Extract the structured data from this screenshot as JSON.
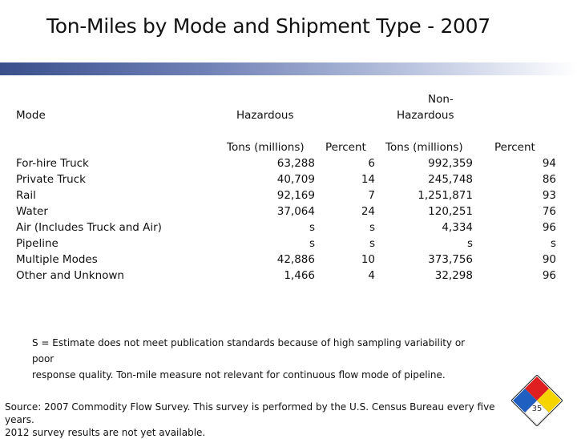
{
  "title": "Ton-Miles by Mode and Shipment Type - 2007",
  "headers": {
    "mode": "Mode",
    "hazardous": "Hazardous",
    "non_hazardous_line1": "Non-",
    "non_hazardous_line2": "Hazardous",
    "tons_haz": "Tons (millions)",
    "pct_haz": "Percent",
    "tons_non": "Tons (millions)",
    "pct_non": "Percent"
  },
  "rows": [
    {
      "mode": "For-hire Truck",
      "tons_haz": "63,288",
      "pct_haz": "6",
      "tons_non": "992,359",
      "pct_non": "94"
    },
    {
      "mode": "Private Truck",
      "tons_haz": "40,709",
      "pct_haz": "14",
      "tons_non": "245,748",
      "pct_non": "86"
    },
    {
      "mode": "Rail",
      "tons_haz": "92,169",
      "pct_haz": "7",
      "tons_non": "1,251,871",
      "pct_non": "93"
    },
    {
      "mode": "Water",
      "tons_haz": "37,064",
      "pct_haz": "24",
      "tons_non": "120,251",
      "pct_non": "76"
    },
    {
      "mode": "Air (Includes Truck and Air)",
      "tons_haz": "s",
      "pct_haz": "s",
      "tons_non": "4,334",
      "pct_non": "96"
    },
    {
      "mode": "Pipeline",
      "tons_haz": "s",
      "pct_haz": "s",
      "tons_non": "s",
      "pct_non": "s"
    },
    {
      "mode": "Multiple Modes",
      "tons_haz": "42,886",
      "pct_haz": "10",
      "tons_non": "373,756",
      "pct_non": "90"
    },
    {
      "mode": "Other and Unknown",
      "tons_haz": "1,466",
      "pct_haz": "4",
      "tons_non": "32,298",
      "pct_non": "96"
    }
  ],
  "note_line1": "S = Estimate does not meet publication standards because of high sampling variability or poor",
  "note_line2": "response quality. Ton-mile measure not relevant for continuous flow mode of pipeline.",
  "source_line1": "Source: 2007 Commodity Flow Survey. This survey is performed by the U.S. Census Bureau every five years.",
  "source_line2": "2012 survey results are not yet available.",
  "page_number": "35",
  "colors": {
    "bar_dark": "#3a4f8c",
    "diamond_blue": "#1f5fbf",
    "diamond_red": "#e02020",
    "diamond_yellow": "#f5d400",
    "diamond_white": "#ffffff"
  }
}
